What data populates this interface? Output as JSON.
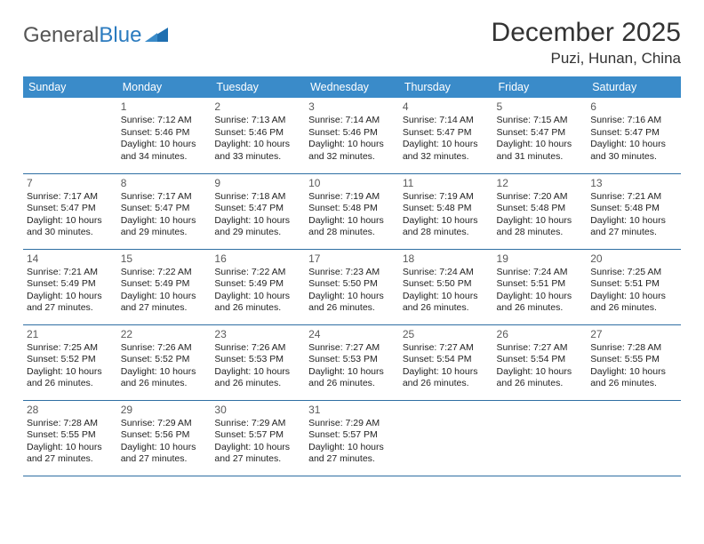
{
  "brand": {
    "part1": "General",
    "part2": "Blue"
  },
  "title": "December 2025",
  "location": "Puzi, Hunan, China",
  "colors": {
    "header_bg": "#3a8bc9",
    "header_text": "#ffffff",
    "rule": "#2f6fa3",
    "text": "#222222",
    "brand_gray": "#555555",
    "brand_blue": "#2b7bbf",
    "logo_tri": "#1f6fb0"
  },
  "day_names": [
    "Sunday",
    "Monday",
    "Tuesday",
    "Wednesday",
    "Thursday",
    "Friday",
    "Saturday"
  ],
  "weeks": [
    [
      null,
      {
        "n": "1",
        "sr": "7:12 AM",
        "ss": "5:46 PM",
        "dl": "10 hours and 34 minutes."
      },
      {
        "n": "2",
        "sr": "7:13 AM",
        "ss": "5:46 PM",
        "dl": "10 hours and 33 minutes."
      },
      {
        "n": "3",
        "sr": "7:14 AM",
        "ss": "5:46 PM",
        "dl": "10 hours and 32 minutes."
      },
      {
        "n": "4",
        "sr": "7:14 AM",
        "ss": "5:47 PM",
        "dl": "10 hours and 32 minutes."
      },
      {
        "n": "5",
        "sr": "7:15 AM",
        "ss": "5:47 PM",
        "dl": "10 hours and 31 minutes."
      },
      {
        "n": "6",
        "sr": "7:16 AM",
        "ss": "5:47 PM",
        "dl": "10 hours and 30 minutes."
      }
    ],
    [
      {
        "n": "7",
        "sr": "7:17 AM",
        "ss": "5:47 PM",
        "dl": "10 hours and 30 minutes."
      },
      {
        "n": "8",
        "sr": "7:17 AM",
        "ss": "5:47 PM",
        "dl": "10 hours and 29 minutes."
      },
      {
        "n": "9",
        "sr": "7:18 AM",
        "ss": "5:47 PM",
        "dl": "10 hours and 29 minutes."
      },
      {
        "n": "10",
        "sr": "7:19 AM",
        "ss": "5:48 PM",
        "dl": "10 hours and 28 minutes."
      },
      {
        "n": "11",
        "sr": "7:19 AM",
        "ss": "5:48 PM",
        "dl": "10 hours and 28 minutes."
      },
      {
        "n": "12",
        "sr": "7:20 AM",
        "ss": "5:48 PM",
        "dl": "10 hours and 28 minutes."
      },
      {
        "n": "13",
        "sr": "7:21 AM",
        "ss": "5:48 PM",
        "dl": "10 hours and 27 minutes."
      }
    ],
    [
      {
        "n": "14",
        "sr": "7:21 AM",
        "ss": "5:49 PM",
        "dl": "10 hours and 27 minutes."
      },
      {
        "n": "15",
        "sr": "7:22 AM",
        "ss": "5:49 PM",
        "dl": "10 hours and 27 minutes."
      },
      {
        "n": "16",
        "sr": "7:22 AM",
        "ss": "5:49 PM",
        "dl": "10 hours and 26 minutes."
      },
      {
        "n": "17",
        "sr": "7:23 AM",
        "ss": "5:50 PM",
        "dl": "10 hours and 26 minutes."
      },
      {
        "n": "18",
        "sr": "7:24 AM",
        "ss": "5:50 PM",
        "dl": "10 hours and 26 minutes."
      },
      {
        "n": "19",
        "sr": "7:24 AM",
        "ss": "5:51 PM",
        "dl": "10 hours and 26 minutes."
      },
      {
        "n": "20",
        "sr": "7:25 AM",
        "ss": "5:51 PM",
        "dl": "10 hours and 26 minutes."
      }
    ],
    [
      {
        "n": "21",
        "sr": "7:25 AM",
        "ss": "5:52 PM",
        "dl": "10 hours and 26 minutes."
      },
      {
        "n": "22",
        "sr": "7:26 AM",
        "ss": "5:52 PM",
        "dl": "10 hours and 26 minutes."
      },
      {
        "n": "23",
        "sr": "7:26 AM",
        "ss": "5:53 PM",
        "dl": "10 hours and 26 minutes."
      },
      {
        "n": "24",
        "sr": "7:27 AM",
        "ss": "5:53 PM",
        "dl": "10 hours and 26 minutes."
      },
      {
        "n": "25",
        "sr": "7:27 AM",
        "ss": "5:54 PM",
        "dl": "10 hours and 26 minutes."
      },
      {
        "n": "26",
        "sr": "7:27 AM",
        "ss": "5:54 PM",
        "dl": "10 hours and 26 minutes."
      },
      {
        "n": "27",
        "sr": "7:28 AM",
        "ss": "5:55 PM",
        "dl": "10 hours and 26 minutes."
      }
    ],
    [
      {
        "n": "28",
        "sr": "7:28 AM",
        "ss": "5:55 PM",
        "dl": "10 hours and 27 minutes."
      },
      {
        "n": "29",
        "sr": "7:29 AM",
        "ss": "5:56 PM",
        "dl": "10 hours and 27 minutes."
      },
      {
        "n": "30",
        "sr": "7:29 AM",
        "ss": "5:57 PM",
        "dl": "10 hours and 27 minutes."
      },
      {
        "n": "31",
        "sr": "7:29 AM",
        "ss": "5:57 PM",
        "dl": "10 hours and 27 minutes."
      },
      null,
      null,
      null
    ]
  ],
  "labels": {
    "sunrise": "Sunrise:",
    "sunset": "Sunset:",
    "daylight": "Daylight:"
  }
}
